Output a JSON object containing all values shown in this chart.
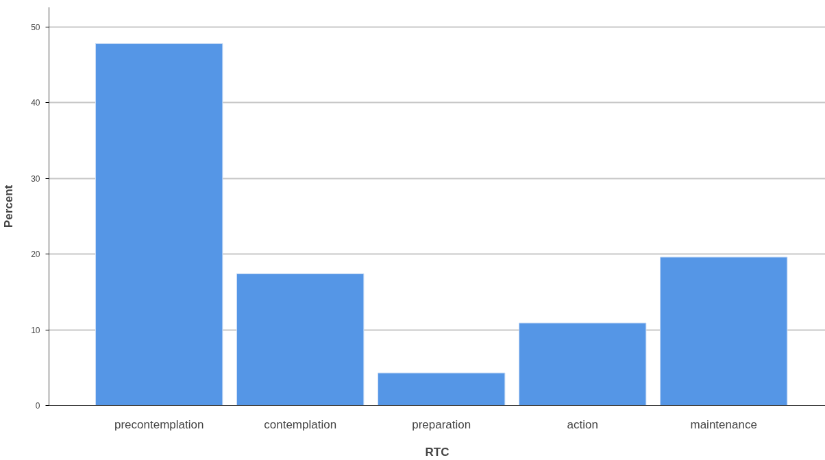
{
  "chart_data": {
    "type": "bar",
    "xlabel": "RTC",
    "ylabel": "Percent",
    "categories": [
      "precontemplation",
      "contemplation",
      "preparation",
      "action",
      "maintenance"
    ],
    "values": [
      47.8,
      17.4,
      4.3,
      10.9,
      19.6
    ],
    "color": "#5596e6",
    "ylim": [
      0,
      52.6
    ],
    "yticks": [
      0,
      10,
      20,
      30,
      40,
      50
    ],
    "grid": "y"
  }
}
